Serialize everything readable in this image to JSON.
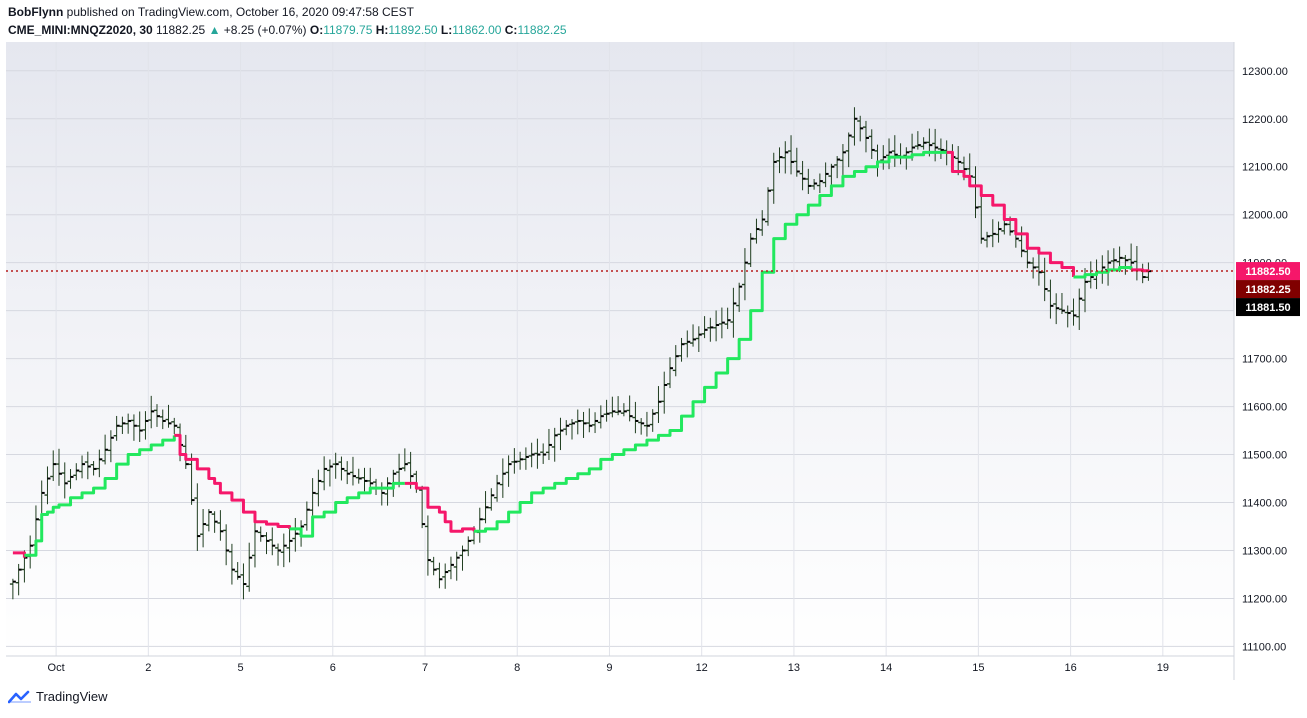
{
  "header": {
    "author": "BobFlynn",
    "published_text": "published on TradingView.com, October 16, 2020 09:47:58 CEST",
    "symbol": "CME_MINI:MNQZ2020, 30",
    "last": "11882.25",
    "change_arrow": "▲",
    "change": "+8.25 (+0.07%)",
    "o_label": "O:",
    "o_value": "11879.75",
    "h_label": "H:",
    "h_value": "11892.50",
    "l_label": "L:",
    "l_value": "11862.00",
    "c_label": "C:",
    "c_value": "11882.25"
  },
  "footer": {
    "brand": "TradingView",
    "logo_icon": "tradingview-logo-icon"
  },
  "colors": {
    "up_line": "#22e85e",
    "down_line": "#f5176a",
    "bar": "#1f3d1f",
    "tag_red": "#f5176a",
    "tag_dark_red": "#800000",
    "tag_black": "#000000"
  },
  "chart_data": {
    "type": "ohlc",
    "indicator": "supertrend",
    "title": "",
    "xlabel": "",
    "ylabel": "",
    "ylim": [
      11080,
      12360
    ],
    "yticks": [
      11100,
      11200,
      11300,
      11400,
      11500,
      11600,
      11700,
      11800,
      11900,
      12000,
      12100,
      12200,
      12300
    ],
    "ytick_labels": [
      "11100.00",
      "11200.00",
      "11300.00",
      "11400.00",
      "11500.00",
      "11600.00",
      "11700.00",
      "11800.00",
      "11900.00",
      "12000.00",
      "12100.00",
      "12200.00",
      "12300.00"
    ],
    "xticks": [
      {
        "label": "Oct",
        "idx": 8
      },
      {
        "label": "2",
        "idx": 24
      },
      {
        "label": "5",
        "idx": 40
      },
      {
        "label": "6",
        "idx": 56
      },
      {
        "label": "7",
        "idx": 72
      },
      {
        "label": "8",
        "idx": 88
      },
      {
        "label": "9",
        "idx": 104
      },
      {
        "label": "12",
        "idx": 120
      },
      {
        "label": "13",
        "idx": 136
      },
      {
        "label": "14",
        "idx": 152
      },
      {
        "label": "15",
        "idx": 168
      },
      {
        "label": "16",
        "idx": 184
      },
      {
        "label": "19",
        "idx": 200
      }
    ],
    "n_slots": 212,
    "last_price": 11882.5,
    "price_tags": [
      {
        "label": "11882.50",
        "value": 11882.5,
        "color": "#f5176a"
      },
      {
        "label": "11882.25",
        "value": 11882.25,
        "color": "#800000"
      },
      {
        "label": "11881.50",
        "value": 11881.5,
        "color": "#000000"
      }
    ],
    "close_anchors": [
      [
        0,
        11235
      ],
      [
        3,
        11310
      ],
      [
        5,
        11420
      ],
      [
        7,
        11480
      ],
      [
        9,
        11440
      ],
      [
        12,
        11480
      ],
      [
        14,
        11470
      ],
      [
        16,
        11510
      ],
      [
        18,
        11560
      ],
      [
        20,
        11570
      ],
      [
        22,
        11550
      ],
      [
        24,
        11590
      ],
      [
        26,
        11570
      ],
      [
        28,
        11560
      ],
      [
        30,
        11480
      ],
      [
        32,
        11330
      ],
      [
        34,
        11380
      ],
      [
        36,
        11340
      ],
      [
        38,
        11260
      ],
      [
        40,
        11230
      ],
      [
        42,
        11340
      ],
      [
        44,
        11320
      ],
      [
        46,
        11300
      ],
      [
        48,
        11320
      ],
      [
        50,
        11350
      ],
      [
        52,
        11420
      ],
      [
        54,
        11470
      ],
      [
        56,
        11480
      ],
      [
        58,
        11460
      ],
      [
        60,
        11450
      ],
      [
        62,
        11440
      ],
      [
        64,
        11420
      ],
      [
        66,
        11460
      ],
      [
        68,
        11480
      ],
      [
        70,
        11430
      ],
      [
        72,
        11280
      ],
      [
        74,
        11240
      ],
      [
        76,
        11270
      ],
      [
        78,
        11300
      ],
      [
        80,
        11340
      ],
      [
        82,
        11390
      ],
      [
        84,
        11440
      ],
      [
        86,
        11480
      ],
      [
        88,
        11490
      ],
      [
        90,
        11500
      ],
      [
        92,
        11500
      ],
      [
        94,
        11540
      ],
      [
        96,
        11560
      ],
      [
        98,
        11570
      ],
      [
        100,
        11560
      ],
      [
        102,
        11580
      ],
      [
        104,
        11590
      ],
      [
        106,
        11590
      ],
      [
        108,
        11570
      ],
      [
        110,
        11560
      ],
      [
        112,
        11610
      ],
      [
        114,
        11680
      ],
      [
        116,
        11730
      ],
      [
        118,
        11740
      ],
      [
        120,
        11760
      ],
      [
        122,
        11770
      ],
      [
        124,
        11780
      ],
      [
        126,
        11850
      ],
      [
        128,
        11950
      ],
      [
        130,
        11990
      ],
      [
        132,
        12110
      ],
      [
        134,
        12130
      ],
      [
        136,
        12090
      ],
      [
        138,
        12060
      ],
      [
        140,
        12070
      ],
      [
        142,
        12100
      ],
      [
        144,
        12130
      ],
      [
        146,
        12200
      ],
      [
        148,
        12160
      ],
      [
        150,
        12110
      ],
      [
        152,
        12130
      ],
      [
        154,
        12120
      ],
      [
        156,
        12140
      ],
      [
        158,
        12150
      ],
      [
        160,
        12140
      ],
      [
        162,
        12130
      ],
      [
        164,
        12110
      ],
      [
        166,
        12080
      ],
      [
        168,
        11950
      ],
      [
        170,
        11960
      ],
      [
        172,
        11980
      ],
      [
        174,
        11950
      ],
      [
        176,
        11900
      ],
      [
        178,
        11880
      ],
      [
        180,
        11810
      ],
      [
        182,
        11800
      ],
      [
        184,
        11790
      ],
      [
        186,
        11860
      ],
      [
        188,
        11880
      ],
      [
        190,
        11900
      ],
      [
        192,
        11910
      ],
      [
        194,
        11900
      ],
      [
        196,
        11870
      ],
      [
        197,
        11882.25
      ]
    ],
    "supertrend_segments": [
      {
        "trend": "down",
        "points": [
          [
            0,
            11295
          ],
          [
            2,
            11285
          ]
        ]
      },
      {
        "trend": "up",
        "points": [
          [
            2,
            11290
          ],
          [
            4,
            11320
          ],
          [
            5,
            11375
          ],
          [
            6,
            11380
          ],
          [
            7,
            11390
          ],
          [
            8,
            11395
          ],
          [
            10,
            11410
          ],
          [
            12,
            11420
          ],
          [
            14,
            11430
          ],
          [
            16,
            11450
          ],
          [
            18,
            11480
          ],
          [
            20,
            11500
          ],
          [
            22,
            11510
          ],
          [
            24,
            11520
          ],
          [
            26,
            11530
          ],
          [
            28,
            11540
          ]
        ]
      },
      {
        "trend": "down",
        "points": [
          [
            28,
            11540
          ],
          [
            29,
            11500
          ],
          [
            30,
            11490
          ],
          [
            32,
            11470
          ],
          [
            34,
            11450
          ],
          [
            35,
            11440
          ],
          [
            36,
            11420
          ],
          [
            38,
            11405
          ],
          [
            40,
            11380
          ],
          [
            42,
            11360
          ],
          [
            44,
            11355
          ],
          [
            46,
            11350
          ],
          [
            48,
            11345
          ]
        ]
      },
      {
        "trend": "up",
        "points": [
          [
            48,
            11345
          ],
          [
            50,
            11330
          ],
          [
            52,
            11370
          ],
          [
            54,
            11380
          ],
          [
            56,
            11400
          ],
          [
            58,
            11410
          ],
          [
            60,
            11420
          ],
          [
            62,
            11430
          ],
          [
            64,
            11430
          ],
          [
            66,
            11440
          ],
          [
            68,
            11440
          ]
        ]
      },
      {
        "trend": "down",
        "points": [
          [
            68,
            11440
          ],
          [
            70,
            11430
          ],
          [
            72,
            11390
          ],
          [
            74,
            11380
          ],
          [
            75,
            11360
          ],
          [
            76,
            11340
          ],
          [
            78,
            11345
          ],
          [
            80,
            11340
          ]
        ]
      },
      {
        "trend": "up",
        "points": [
          [
            80,
            11340
          ],
          [
            82,
            11345
          ],
          [
            84,
            11360
          ],
          [
            86,
            11380
          ],
          [
            88,
            11400
          ],
          [
            90,
            11420
          ],
          [
            92,
            11430
          ],
          [
            94,
            11440
          ],
          [
            96,
            11450
          ],
          [
            98,
            11460
          ],
          [
            100,
            11470
          ],
          [
            102,
            11490
          ],
          [
            104,
            11500
          ],
          [
            106,
            11510
          ],
          [
            108,
            11520
          ],
          [
            110,
            11530
          ],
          [
            112,
            11540
          ],
          [
            114,
            11550
          ],
          [
            116,
            11580
          ],
          [
            118,
            11610
          ],
          [
            120,
            11640
          ],
          [
            122,
            11670
          ],
          [
            124,
            11700
          ],
          [
            126,
            11740
          ],
          [
            128,
            11800
          ],
          [
            130,
            11880
          ],
          [
            132,
            11950
          ],
          [
            134,
            11980
          ],
          [
            136,
            12000
          ],
          [
            138,
            12020
          ],
          [
            140,
            12040
          ],
          [
            142,
            12060
          ],
          [
            144,
            12080
          ],
          [
            146,
            12090
          ],
          [
            148,
            12100
          ],
          [
            150,
            12110
          ],
          [
            152,
            12120
          ],
          [
            154,
            12120
          ],
          [
            156,
            12125
          ],
          [
            158,
            12130
          ],
          [
            160,
            12130
          ],
          [
            162,
            12130
          ]
        ]
      },
      {
        "trend": "down",
        "points": [
          [
            162,
            12130
          ],
          [
            163,
            12090
          ],
          [
            165,
            12080
          ],
          [
            166,
            12060
          ],
          [
            168,
            12040
          ],
          [
            170,
            12020
          ],
          [
            172,
            11990
          ],
          [
            174,
            11960
          ],
          [
            176,
            11930
          ],
          [
            178,
            11920
          ],
          [
            180,
            11900
          ],
          [
            182,
            11890
          ],
          [
            184,
            11870
          ]
        ]
      },
      {
        "trend": "up",
        "points": [
          [
            184,
            11870
          ],
          [
            186,
            11875
          ],
          [
            188,
            11880
          ],
          [
            190,
            11885
          ],
          [
            192,
            11890
          ],
          [
            194,
            11885
          ]
        ]
      },
      {
        "trend": "down",
        "points": [
          [
            194,
            11885
          ],
          [
            196,
            11883
          ],
          [
            197,
            11882.5
          ]
        ]
      }
    ]
  }
}
